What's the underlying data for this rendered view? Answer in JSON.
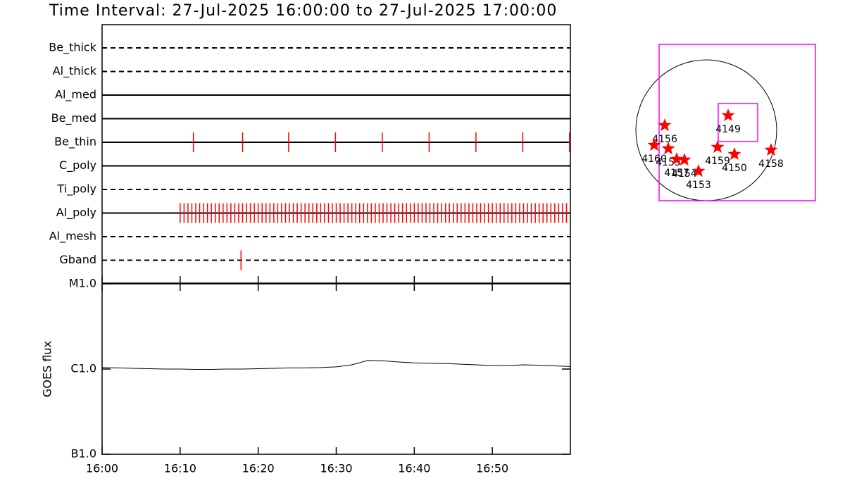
{
  "chart_data": [
    {
      "type": "timeline",
      "title": "Time Interval: 27-Jul-2025 16:00:00 to 27-Jul-2025 17:00:00",
      "xlim": [
        0,
        60
      ],
      "series": [
        {
          "name": "Be_thick",
          "style": "dashed",
          "color": "#ff0000",
          "values": []
        },
        {
          "name": "Al_thick",
          "style": "dashed",
          "color": "#ff0000",
          "values": []
        },
        {
          "name": "Al_med",
          "style": "solid",
          "color": "#ff0000",
          "values": []
        },
        {
          "name": "Be_med",
          "style": "solid",
          "color": "#ff0000",
          "values": []
        },
        {
          "name": "Be_thin",
          "style": "solid",
          "color": "#ff0000",
          "values": [
            11.7,
            18,
            23.9,
            29.9,
            35.9,
            41.9,
            47.9,
            53.9,
            59.9
          ]
        },
        {
          "name": "C_poly",
          "style": "solid",
          "color": "#ff0000",
          "values": []
        },
        {
          "name": "Ti_poly",
          "style": "dashed",
          "color": "#ff0000",
          "values": []
        },
        {
          "name": "Al_poly",
          "style": "solid",
          "color": "#ff0000",
          "values": [
            10,
            10.5,
            11,
            11.5,
            12,
            12.5,
            13,
            13.5,
            14,
            14.5,
            15,
            15.5,
            16,
            16.5,
            17,
            17.5,
            18,
            18.5,
            19,
            19.5,
            20,
            20.5,
            21,
            21.5,
            22,
            22.5,
            23,
            23.5,
            24,
            24.5,
            25,
            25.5,
            26,
            26.5,
            27,
            27.5,
            28,
            28.5,
            29,
            29.5,
            30,
            30.5,
            31,
            31.5,
            32,
            32.5,
            33,
            33.5,
            34,
            34.5,
            35,
            35.5,
            36,
            36.5,
            37,
            37.5,
            38,
            38.5,
            39,
            39.5,
            40,
            40.5,
            41,
            41.5,
            42,
            42.5,
            43,
            43.5,
            44,
            44.5,
            45,
            45.5,
            46,
            46.5,
            47,
            47.5,
            48,
            48.5,
            49,
            49.5,
            50,
            50.5,
            51,
            51.5,
            52,
            52.5,
            53,
            53.5,
            54,
            54.5,
            55,
            55.5,
            56,
            56.5,
            57,
            57.5,
            58,
            58.5,
            59,
            59.5
          ]
        },
        {
          "name": "Al_mesh",
          "style": "dashed",
          "color": "#ff0000",
          "values": []
        },
        {
          "name": "Gband",
          "style": "dashed",
          "color": "#ff0000",
          "values": [
            17.8
          ]
        }
      ]
    },
    {
      "type": "line",
      "ylabel": "GOES flux",
      "log": true,
      "xlim": [
        0,
        60
      ],
      "xticks": [
        {
          "value": 0,
          "label": "16:00"
        },
        {
          "value": 10,
          "label": "16:10"
        },
        {
          "value": 20,
          "label": "16:20"
        },
        {
          "value": 30,
          "label": "16:30"
        },
        {
          "value": 40,
          "label": "16:40"
        },
        {
          "value": 50,
          "label": "16:50"
        }
      ],
      "ylim": [
        1e-07,
        1e-05
      ],
      "yticks": [
        {
          "value": 1e-07,
          "label": "B1.0"
        },
        {
          "value": 1e-06,
          "label": "C1.0"
        },
        {
          "value": 1e-05,
          "label": "M1.0"
        }
      ],
      "x": [
        0,
        2,
        4,
        6,
        8,
        10,
        12,
        14,
        16,
        18,
        20,
        22,
        24,
        26,
        28,
        30,
        32,
        34,
        36,
        38,
        40,
        42,
        44,
        46,
        48,
        50,
        52,
        54,
        56,
        58,
        60
      ],
      "values": [
        1.04e-06,
        1.03e-06,
        1.02e-06,
        1.01e-06,
        1e-06,
        1e-06,
        9.9e-07,
        9.9e-07,
        1e-06,
        1e-06,
        1.01e-06,
        1.02e-06,
        1.03e-06,
        1.03e-06,
        1.04e-06,
        1.06e-06,
        1.12e-06,
        1.26e-06,
        1.25e-06,
        1.21e-06,
        1.18e-06,
        1.17e-06,
        1.16e-06,
        1.14e-06,
        1.12e-06,
        1.1e-06,
        1.1e-06,
        1.12e-06,
        1.11e-06,
        1.09e-06,
        1.07e-06
      ],
      "color": "#000000"
    },
    {
      "type": "map",
      "regions": [
        {
          "name": "4149",
          "x": 298,
          "y": 202
        },
        {
          "name": "4156",
          "x": -566,
          "y": 67
        },
        {
          "name": "4160",
          "x": -710,
          "y": -202
        },
        {
          "name": "4155",
          "x": -518,
          "y": -250
        },
        {
          "name": "4157",
          "x": -403,
          "y": -394
        },
        {
          "name": "4154",
          "x": -298,
          "y": -403
        },
        {
          "name": "4153",
          "x": -106,
          "y": -557
        },
        {
          "name": "4159",
          "x": 154,
          "y": -230
        },
        {
          "name": "4150",
          "x": 384,
          "y": -326
        },
        {
          "name": "4158",
          "x": 883,
          "y": -269
        }
      ],
      "color": "#ff0000"
    }
  ]
}
